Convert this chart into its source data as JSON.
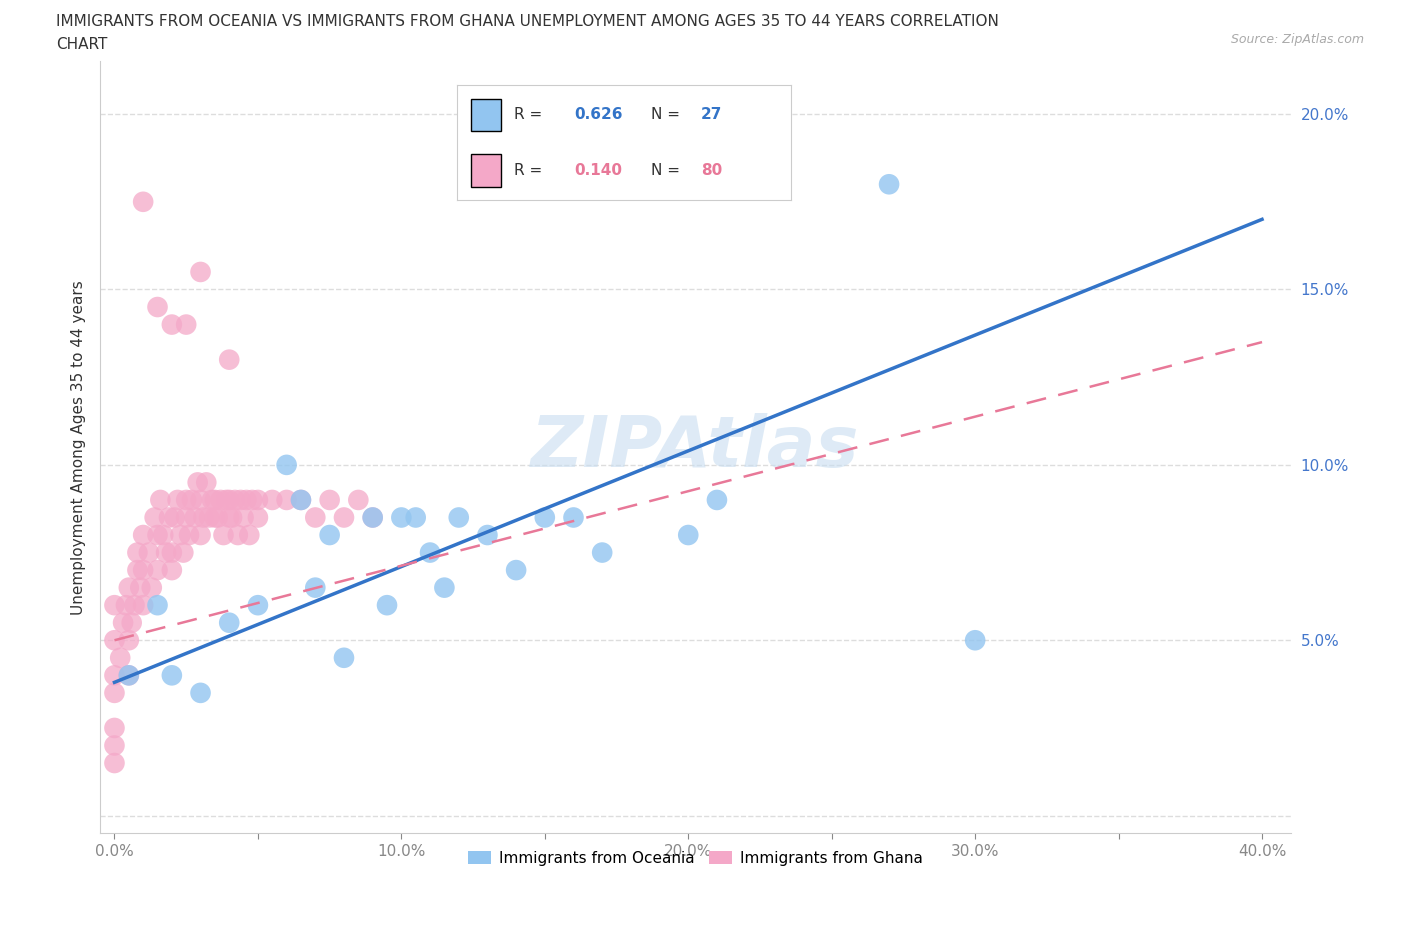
{
  "title_line1": "IMMIGRANTS FROM OCEANIA VS IMMIGRANTS FROM GHANA UNEMPLOYMENT AMONG AGES 35 TO 44 YEARS CORRELATION",
  "title_line2": "CHART",
  "source": "Source: ZipAtlas.com",
  "ylabel": "Unemployment Among Ages 35 to 44 years",
  "x_ticks": [
    0.0,
    0.05,
    0.1,
    0.15,
    0.2,
    0.25,
    0.3,
    0.35,
    0.4
  ],
  "x_tick_labels": [
    "0.0%",
    "",
    "10.0%",
    "",
    "20.0%",
    "",
    "30.0%",
    "",
    "40.0%"
  ],
  "y_ticks": [
    0.0,
    0.05,
    0.1,
    0.15,
    0.2
  ],
  "y_tick_labels": [
    "",
    "5.0%",
    "10.0%",
    "15.0%",
    "20.0%"
  ],
  "xlim": [
    -0.005,
    0.41
  ],
  "ylim": [
    -0.005,
    0.215
  ],
  "oceania_color": "#92c5f0",
  "ghana_color": "#f4a8c8",
  "oceania_line_color": "#3374c8",
  "ghana_line_color": "#e87898",
  "oceania_R": 0.626,
  "oceania_N": 27,
  "ghana_R": 0.14,
  "ghana_N": 80,
  "legend_label_oceania": "Immigrants from Oceania",
  "legend_label_ghana": "Immigrants from Ghana",
  "watermark": "ZIPAtlas",
  "oceania_line_x0": 0.0,
  "oceania_line_y0": 0.038,
  "oceania_line_x1": 0.4,
  "oceania_line_y1": 0.17,
  "ghana_line_x0": 0.0,
  "ghana_line_y0": 0.05,
  "ghana_line_x1": 0.4,
  "ghana_line_y1": 0.135,
  "oceania_scatter_x": [
    0.005,
    0.015,
    0.02,
    0.03,
    0.04,
    0.05,
    0.06,
    0.065,
    0.07,
    0.075,
    0.08,
    0.09,
    0.095,
    0.1,
    0.105,
    0.11,
    0.115,
    0.12,
    0.13,
    0.14,
    0.15,
    0.16,
    0.17,
    0.2,
    0.21,
    0.27,
    0.3
  ],
  "oceania_scatter_y": [
    0.04,
    0.06,
    0.04,
    0.035,
    0.055,
    0.06,
    0.1,
    0.09,
    0.065,
    0.08,
    0.045,
    0.085,
    0.06,
    0.085,
    0.085,
    0.075,
    0.065,
    0.085,
    0.08,
    0.07,
    0.085,
    0.085,
    0.075,
    0.08,
    0.09,
    0.18,
    0.05
  ],
  "ghana_scatter_x": [
    0.0,
    0.0,
    0.0,
    0.0,
    0.0,
    0.0,
    0.0,
    0.002,
    0.003,
    0.004,
    0.005,
    0.005,
    0.005,
    0.006,
    0.007,
    0.008,
    0.008,
    0.009,
    0.01,
    0.01,
    0.01,
    0.012,
    0.013,
    0.014,
    0.015,
    0.015,
    0.016,
    0.017,
    0.018,
    0.019,
    0.02,
    0.02,
    0.021,
    0.022,
    0.023,
    0.024,
    0.025,
    0.025,
    0.026,
    0.027,
    0.028,
    0.029,
    0.03,
    0.03,
    0.031,
    0.032,
    0.033,
    0.034,
    0.035,
    0.035,
    0.036,
    0.037,
    0.038,
    0.039,
    0.04,
    0.04,
    0.041,
    0.042,
    0.043,
    0.044,
    0.045,
    0.046,
    0.047,
    0.048,
    0.05,
    0.05,
    0.055,
    0.06,
    0.065,
    0.07,
    0.075,
    0.08,
    0.085,
    0.09,
    0.01,
    0.015,
    0.02,
    0.025,
    0.03,
    0.04
  ],
  "ghana_scatter_y": [
    0.04,
    0.05,
    0.06,
    0.035,
    0.02,
    0.015,
    0.025,
    0.045,
    0.055,
    0.06,
    0.04,
    0.05,
    0.065,
    0.055,
    0.06,
    0.07,
    0.075,
    0.065,
    0.06,
    0.07,
    0.08,
    0.075,
    0.065,
    0.085,
    0.07,
    0.08,
    0.09,
    0.08,
    0.075,
    0.085,
    0.07,
    0.075,
    0.085,
    0.09,
    0.08,
    0.075,
    0.085,
    0.09,
    0.08,
    0.09,
    0.085,
    0.095,
    0.08,
    0.09,
    0.085,
    0.095,
    0.085,
    0.09,
    0.085,
    0.09,
    0.085,
    0.09,
    0.08,
    0.09,
    0.085,
    0.09,
    0.085,
    0.09,
    0.08,
    0.09,
    0.085,
    0.09,
    0.08,
    0.09,
    0.085,
    0.09,
    0.09,
    0.09,
    0.09,
    0.085,
    0.09,
    0.085,
    0.09,
    0.085,
    0.175,
    0.145,
    0.14,
    0.14,
    0.155,
    0.13
  ]
}
